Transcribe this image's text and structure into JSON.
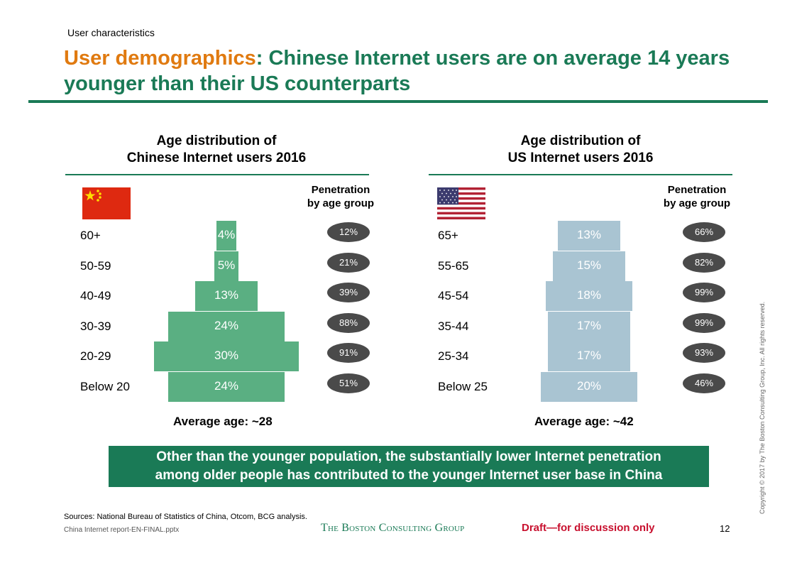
{
  "header": {
    "section_label": "User characteristics",
    "title_highlight": "User demographics",
    "title_rest": ": Chinese Internet users are on average 14 years younger than their US counterparts"
  },
  "colors": {
    "brand_green": "#1a7a56",
    "title_orange": "#e07a10",
    "china_bar": "#5aaf82",
    "us_bar": "#a9c4d2",
    "pill": "#4a4a4a",
    "draft_red": "#c8102e"
  },
  "chart_data": [
    {
      "type": "bar",
      "orientation": "horizontal-centered",
      "title_line1": "Age distribution of",
      "title_line2": "Chinese Internet users 2016",
      "flag": "china-flag",
      "penetration_header_line1": "Penetration",
      "penetration_header_line2": "by age group",
      "categories": [
        "60+",
        "50-59",
        "40-49",
        "30-39",
        "20-29",
        "Below 20"
      ],
      "values": [
        4,
        5,
        13,
        24,
        30,
        24
      ],
      "value_labels": [
        "4%",
        "5%",
        "13%",
        "24%",
        "30%",
        "24%"
      ],
      "penetration": [
        "12%",
        "21%",
        "39%",
        "88%",
        "91%",
        "51%"
      ],
      "average_label": "Average age: ~28"
    },
    {
      "type": "bar",
      "orientation": "horizontal-centered",
      "title_line1": "Age distribution of",
      "title_line2": "US Internet users 2016",
      "flag": "us-flag",
      "penetration_header_line1": "Penetration",
      "penetration_header_line2": "by age group",
      "categories": [
        "65+",
        "55-65",
        "45-54",
        "35-44",
        "25-34",
        "Below 25"
      ],
      "values": [
        13,
        15,
        18,
        17,
        17,
        20
      ],
      "value_labels": [
        "13%",
        "15%",
        "18%",
        "17%",
        "17%",
        "20%"
      ],
      "penetration": [
        "66%",
        "82%",
        "99%",
        "99%",
        "93%",
        "46%"
      ],
      "average_label": "Average age: ~42"
    }
  ],
  "callout": {
    "line1": "Other than the younger population, the substantially lower Internet penetration",
    "line2": "among older people has contributed to the younger Internet user base in China"
  },
  "footer": {
    "sources": "Sources: National Bureau of Statistics of China, Otcom, BCG analysis.",
    "filename": "China Internet report-EN-FINAL.pptx",
    "logo": "The Boston Consulting Group",
    "draft": "Draft—for discussion only",
    "page_number": "12",
    "copyright": "Copyright © 2017 by The Boston Consulting Group, Inc. All rights reserved."
  }
}
